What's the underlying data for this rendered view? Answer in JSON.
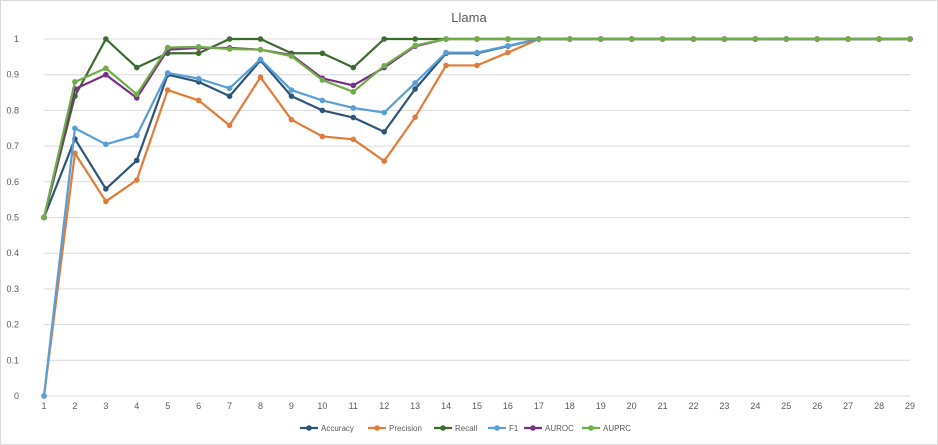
{
  "chart_data": {
    "type": "line",
    "title": "Llama",
    "xlabel": "",
    "ylabel": "",
    "x": [
      1,
      2,
      3,
      4,
      5,
      6,
      7,
      8,
      9,
      10,
      11,
      12,
      13,
      14,
      15,
      16,
      17,
      18,
      19,
      20,
      21,
      22,
      23,
      24,
      25,
      26,
      27,
      28,
      29
    ],
    "ylim": [
      0,
      1
    ],
    "yticks": [
      "0",
      "0.1",
      "0.2",
      "0.3",
      "0.4",
      "0.5",
      "0.6",
      "0.7",
      "0.8",
      "0.9",
      "1"
    ],
    "grid": true,
    "legend_position": "bottom",
    "series": [
      {
        "name": "Accuracy",
        "color": "#2e5578",
        "values": [
          0.5,
          0.72,
          0.58,
          0.66,
          0.9,
          0.88,
          0.84,
          0.94,
          0.84,
          0.8,
          0.78,
          0.74,
          0.86,
          0.96,
          0.96,
          0.98,
          1,
          1,
          1,
          1,
          1,
          1,
          1,
          1,
          1,
          1,
          1,
          1,
          1
        ]
      },
      {
        "name": "Precision",
        "color": "#e07b39",
        "values": [
          0,
          0.68,
          0.545,
          0.605,
          0.857,
          0.828,
          0.758,
          0.893,
          0.774,
          0.727,
          0.719,
          0.658,
          0.781,
          0.926,
          0.926,
          0.962,
          1,
          1,
          1,
          1,
          1,
          1,
          1,
          1,
          1,
          1,
          1,
          1,
          1
        ]
      },
      {
        "name": "Recall",
        "color": "#3c6b2f",
        "values": [
          0.5,
          0.84,
          1,
          0.92,
          0.96,
          0.96,
          1,
          1,
          0.96,
          0.96,
          0.92,
          1,
          1,
          1,
          1,
          1,
          1,
          1,
          1,
          1,
          1,
          1,
          1,
          1,
          1,
          1,
          1,
          1,
          1
        ]
      },
      {
        "name": "F1",
        "color": "#5a9ed6",
        "values": [
          0,
          0.75,
          0.705,
          0.73,
          0.905,
          0.889,
          0.862,
          0.943,
          0.857,
          0.828,
          0.807,
          0.794,
          0.877,
          0.962,
          0.962,
          0.981,
          1,
          1,
          1,
          1,
          1,
          1,
          1,
          1,
          1,
          1,
          1,
          1,
          1
        ]
      },
      {
        "name": "AUROC",
        "color": "#7b2d8b",
        "values": [
          0.5,
          0.86,
          0.9,
          0.835,
          0.97,
          0.975,
          0.975,
          0.97,
          0.955,
          0.89,
          0.87,
          0.92,
          0.98,
          1,
          1,
          1,
          1,
          1,
          1,
          1,
          1,
          1,
          1,
          1,
          1,
          1,
          1,
          1,
          1
        ]
      },
      {
        "name": "AUPRC",
        "color": "#70ad47",
        "values": [
          0.5,
          0.88,
          0.918,
          0.845,
          0.976,
          0.978,
          0.972,
          0.97,
          0.952,
          0.885,
          0.852,
          0.925,
          0.982,
          1,
          1,
          1,
          1,
          1,
          1,
          1,
          1,
          1,
          1,
          1,
          1,
          1,
          1,
          1,
          1
        ]
      }
    ]
  }
}
